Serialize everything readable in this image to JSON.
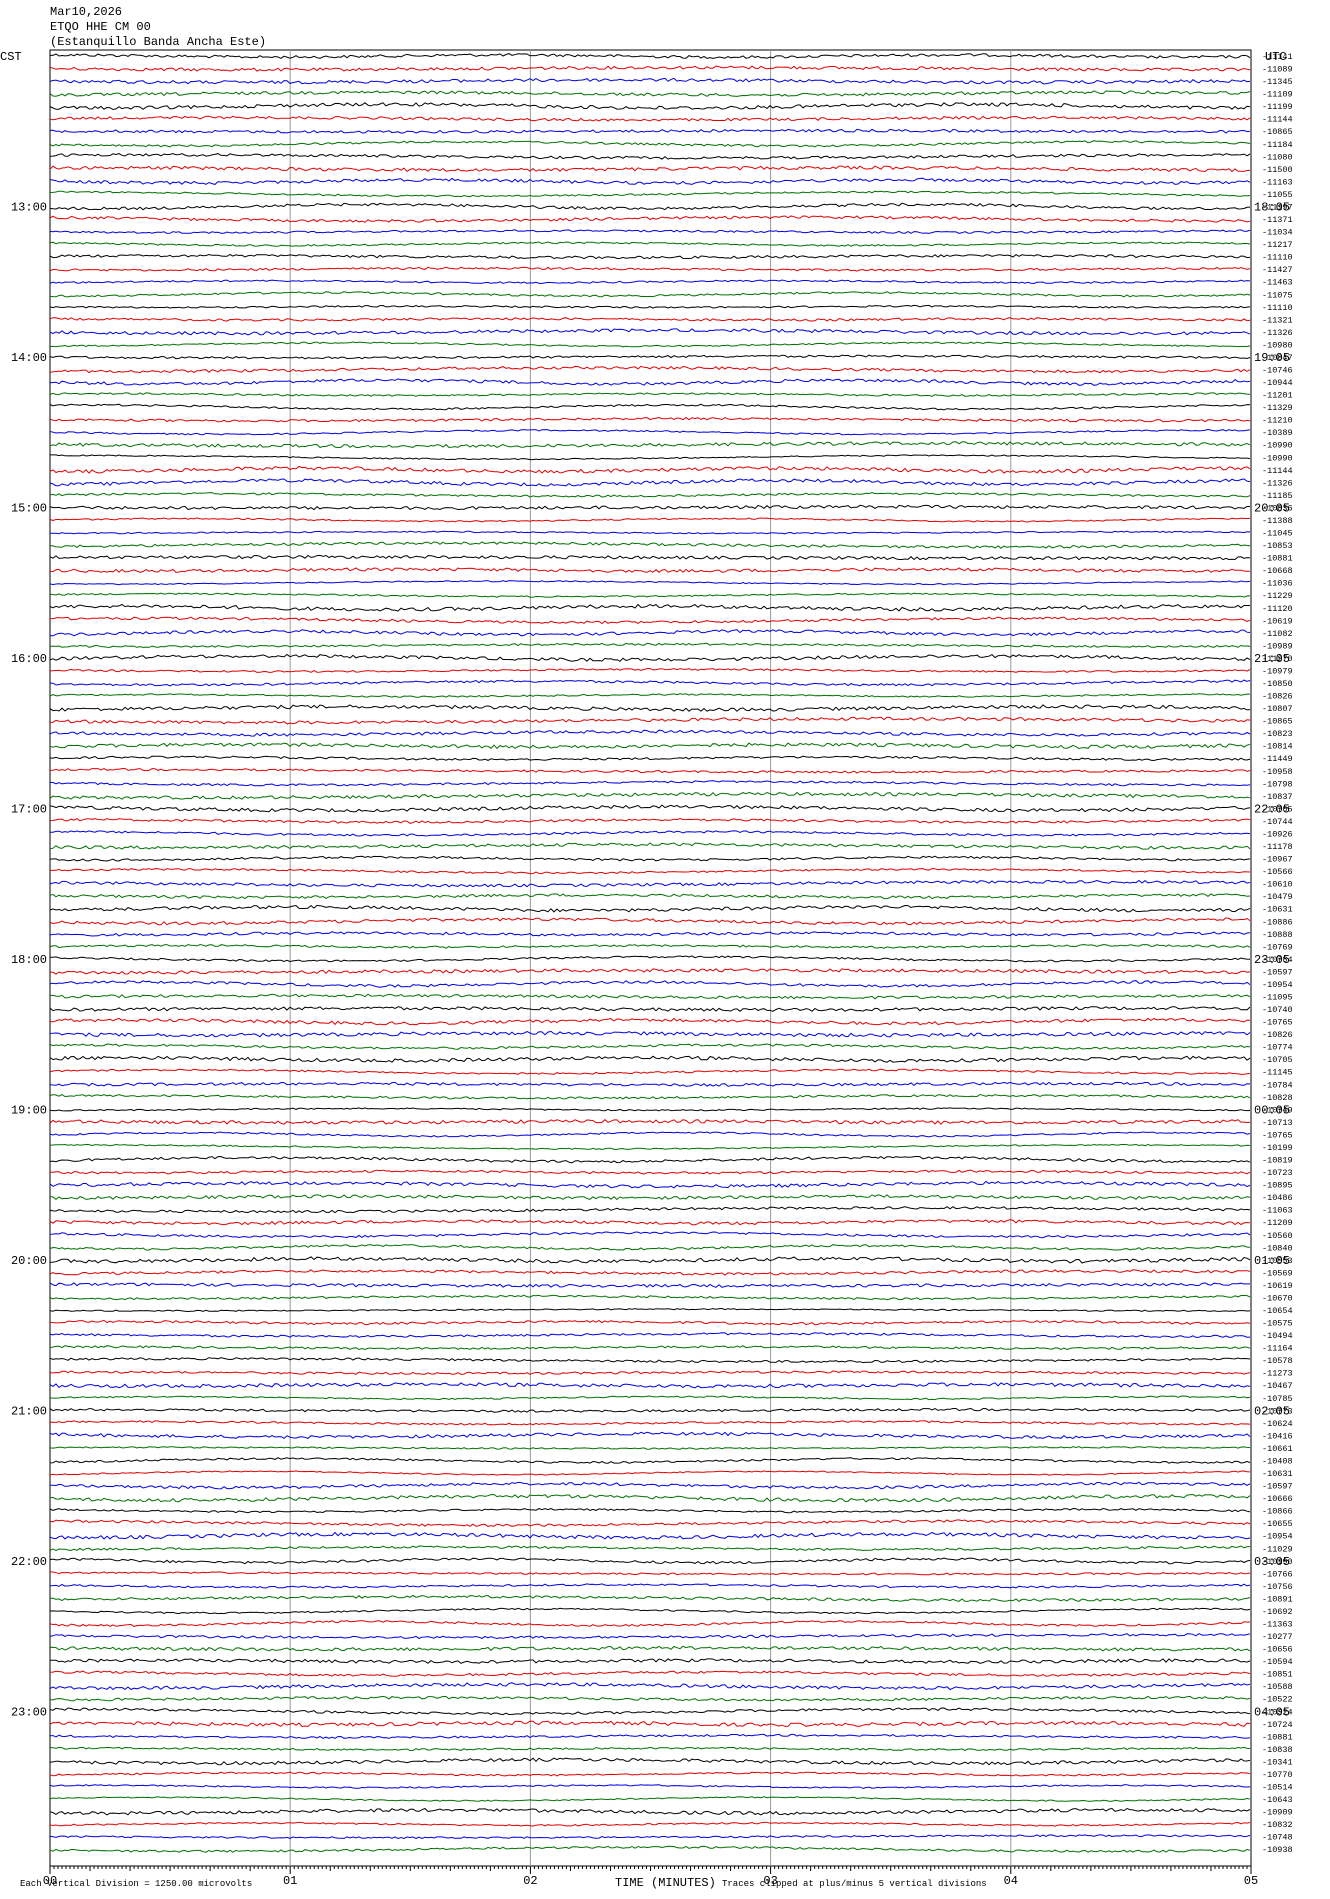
{
  "header": {
    "date": "Mar10,2026",
    "station": "ETQO HHE CM 00",
    "location": "(Estanquillo Banda Ancha Este)"
  },
  "left_axis": {
    "title": "CST",
    "labels": [
      "13:00",
      "14:00",
      "15:00",
      "16:00",
      "17:00",
      "18:00",
      "19:00",
      "20:00",
      "21:00",
      "22:00",
      "23:00"
    ]
  },
  "right_axis": {
    "title": "UTC",
    "labels": [
      "18:05",
      "19:05",
      "20:05",
      "21:05",
      "22:05",
      "23:05",
      "00:05",
      "01:05",
      "02:05",
      "03:05",
      "04:05"
    ]
  },
  "trace_colors": [
    "#000000",
    "#e00000",
    "#0000e0",
    "#007000"
  ],
  "trace_labels": [
    "-11141",
    "-11089",
    "-11345",
    "-11109",
    "-11199",
    "-11144",
    "-10865",
    "-11184",
    "-11080",
    "-11500",
    "-11163",
    "-11055",
    "-11197",
    "-11371",
    "-11034",
    "-11217",
    "-11110",
    "-11427",
    "-11463",
    "-11075",
    "-11110",
    "-11321",
    "-11326",
    "-10980",
    "-10847",
    "-10746",
    "-10944",
    "-11201",
    "-11329",
    "-11210",
    "-10389",
    "-10990",
    "-10990",
    "-11144",
    "-11326",
    "-11185",
    "-10836",
    "-11388",
    "-11045",
    "-10853",
    "-10881",
    "-10668",
    "-11036",
    "-11229",
    "-11120",
    "-10619",
    "-11082",
    "-10989",
    "-11270",
    "-10979",
    "-10850",
    "-10826",
    "-10807",
    "-10865",
    "-10823",
    "-10814",
    "-11449",
    "-10958",
    "-10798",
    "-10837",
    "-10705",
    "-10744",
    "-10926",
    "-11178",
    "-10967",
    "-10566",
    "-10610",
    "-10479",
    "-10631",
    "-10886",
    "-10888",
    "-10769",
    "-10784",
    "-10597",
    "-10954",
    "-11095",
    "-10740",
    "-10765",
    "-10826",
    "-10774",
    "-10705",
    "-11145",
    "-10784",
    "-10828",
    "-10749",
    "-10713",
    "-10765",
    "-10199",
    "-10819",
    "-10723",
    "-10895",
    "-10486",
    "-11063",
    "-11209",
    "-10560",
    "-10840",
    "-10553",
    "-10569",
    "-10619",
    "-10670",
    "-10654",
    "-10575",
    "-10494",
    "-11164",
    "-10578",
    "-11273",
    "-10467",
    "-10785",
    "-10773",
    "-10624",
    "-10416",
    "-10661",
    "-10408",
    "-10631",
    "-10597",
    "-10666",
    "-10866",
    "-10655",
    "-10954",
    "-11029",
    "-10190",
    "-10766",
    "-10756",
    "-10891",
    "-10692",
    "-11363",
    "-10277",
    "-10656",
    "-10594",
    "-10851",
    "-10588",
    "-10522",
    "-10324",
    "-10724",
    "-10881",
    "-10838",
    "-10341",
    "-10770",
    "-10514",
    "-10643",
    "-10909",
    "-10832",
    "-10748",
    "-10938"
  ],
  "x_axis": {
    "labels": [
      "00",
      "01",
      "02",
      "03",
      "04",
      "05"
    ],
    "title": "TIME (MINUTES)"
  },
  "footer": {
    "scale_note": "Each Vertical Division = 1250.00 microvolts",
    "clip_note": "Traces clipped at plus/minus 5 vertical divisions"
  }
}
